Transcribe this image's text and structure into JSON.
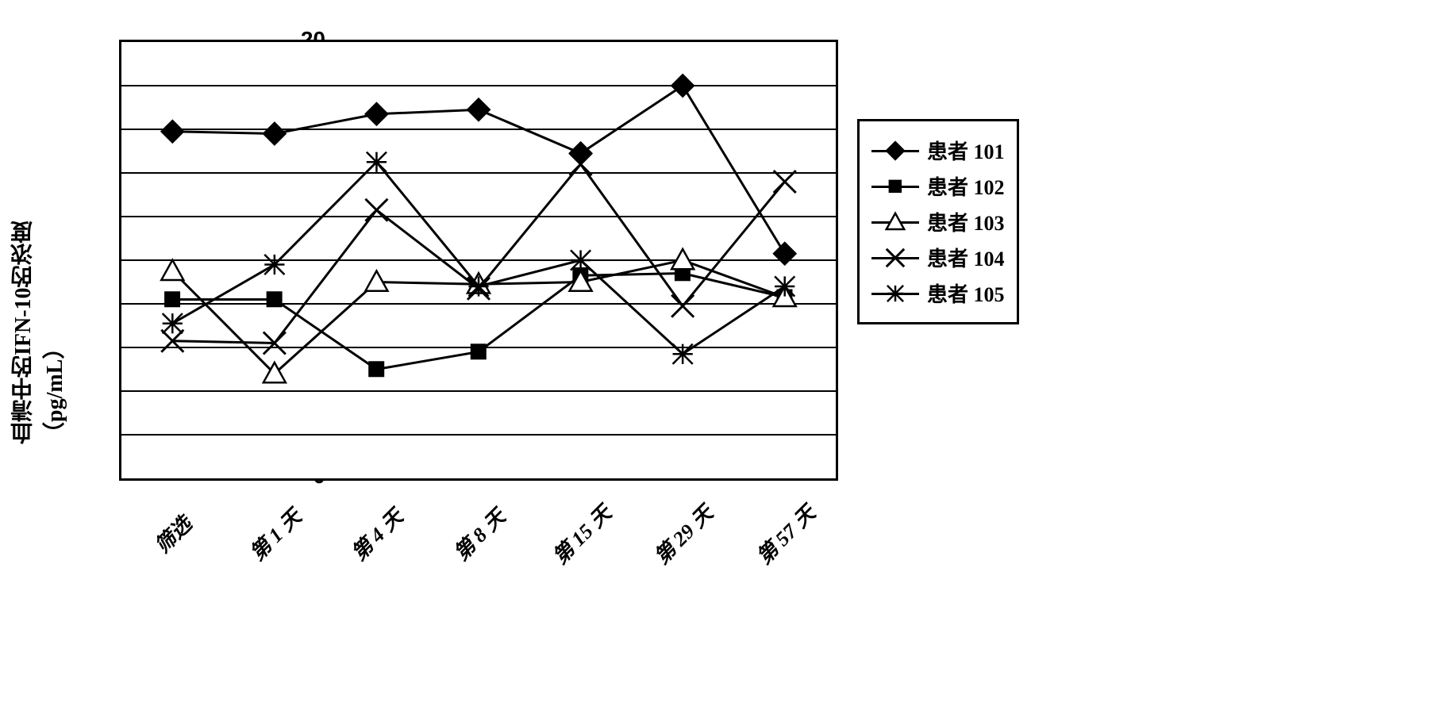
{
  "chart": {
    "type": "line",
    "ylabel": "血清中的IFN-10的浓度（pg/mL）",
    "ylim": [
      0,
      20
    ],
    "ytick_step": 2,
    "yticks": [
      0,
      2,
      4,
      6,
      8,
      10,
      12,
      14,
      16,
      18,
      20
    ],
    "x_categories": [
      "筛选",
      "第 1 天",
      "第 4 天",
      "第 8 天",
      "第 15 天",
      "第 29 天",
      "第 57 天"
    ],
    "line_color": "#000000",
    "line_width": 3,
    "grid_color": "#000000",
    "background_color": "#ffffff",
    "border_color": "#000000",
    "label_fontsize": 28,
    "tick_fontsize": 28,
    "series": [
      {
        "name": "患者 101",
        "marker": "diamond",
        "marker_fill": "#000000",
        "marker_size": 14,
        "values": [
          15.9,
          15.8,
          16.7,
          16.9,
          14.9,
          18.0,
          10.3
        ]
      },
      {
        "name": "患者 102",
        "marker": "square",
        "marker_fill": "#000000",
        "marker_size": 12,
        "values": [
          8.2,
          8.2,
          5.0,
          5.8,
          9.3,
          9.4,
          8.3
        ]
      },
      {
        "name": "患者 103",
        "marker": "triangle",
        "marker_fill": "#ffffff",
        "marker_size": 14,
        "values": [
          9.5,
          4.8,
          9.0,
          8.9,
          9.0,
          10.0,
          8.3
        ]
      },
      {
        "name": "患者 104",
        "marker": "x",
        "marker_fill": "#000000",
        "marker_size": 14,
        "values": [
          6.3,
          6.2,
          12.3,
          8.7,
          14.4,
          7.9,
          13.6
        ]
      },
      {
        "name": "患者 105",
        "marker": "asterisk",
        "marker_fill": "#000000",
        "marker_size": 14,
        "values": [
          7.1,
          9.8,
          14.5,
          8.8,
          10.0,
          5.7,
          8.8
        ]
      }
    ]
  }
}
